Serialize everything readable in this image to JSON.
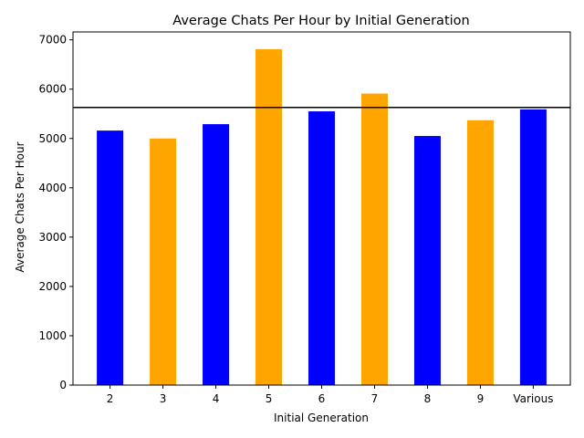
{
  "chart_data": {
    "type": "bar",
    "title": "Average Chats Per Hour by Initial Generation",
    "xlabel": "Initial Generation",
    "ylabel": "Average Chats Per Hour",
    "categories": [
      "2",
      "3",
      "4",
      "5",
      "6",
      "7",
      "8",
      "9",
      "Various"
    ],
    "values": [
      5160,
      5000,
      5290,
      6810,
      5550,
      5910,
      5050,
      5370,
      5590
    ],
    "bar_colors": [
      "#0000ff",
      "#ffa500",
      "#0000ff",
      "#ffa500",
      "#0000ff",
      "#ffa500",
      "#0000ff",
      "#ffa500",
      "#0000ff"
    ],
    "reference_line": 5630,
    "reference_line_color": "#000000",
    "ylim": [
      0,
      7160
    ],
    "yticks": [
      0,
      1000,
      2000,
      3000,
      4000,
      5000,
      6000,
      7000
    ],
    "grid": false,
    "legend": "none"
  }
}
